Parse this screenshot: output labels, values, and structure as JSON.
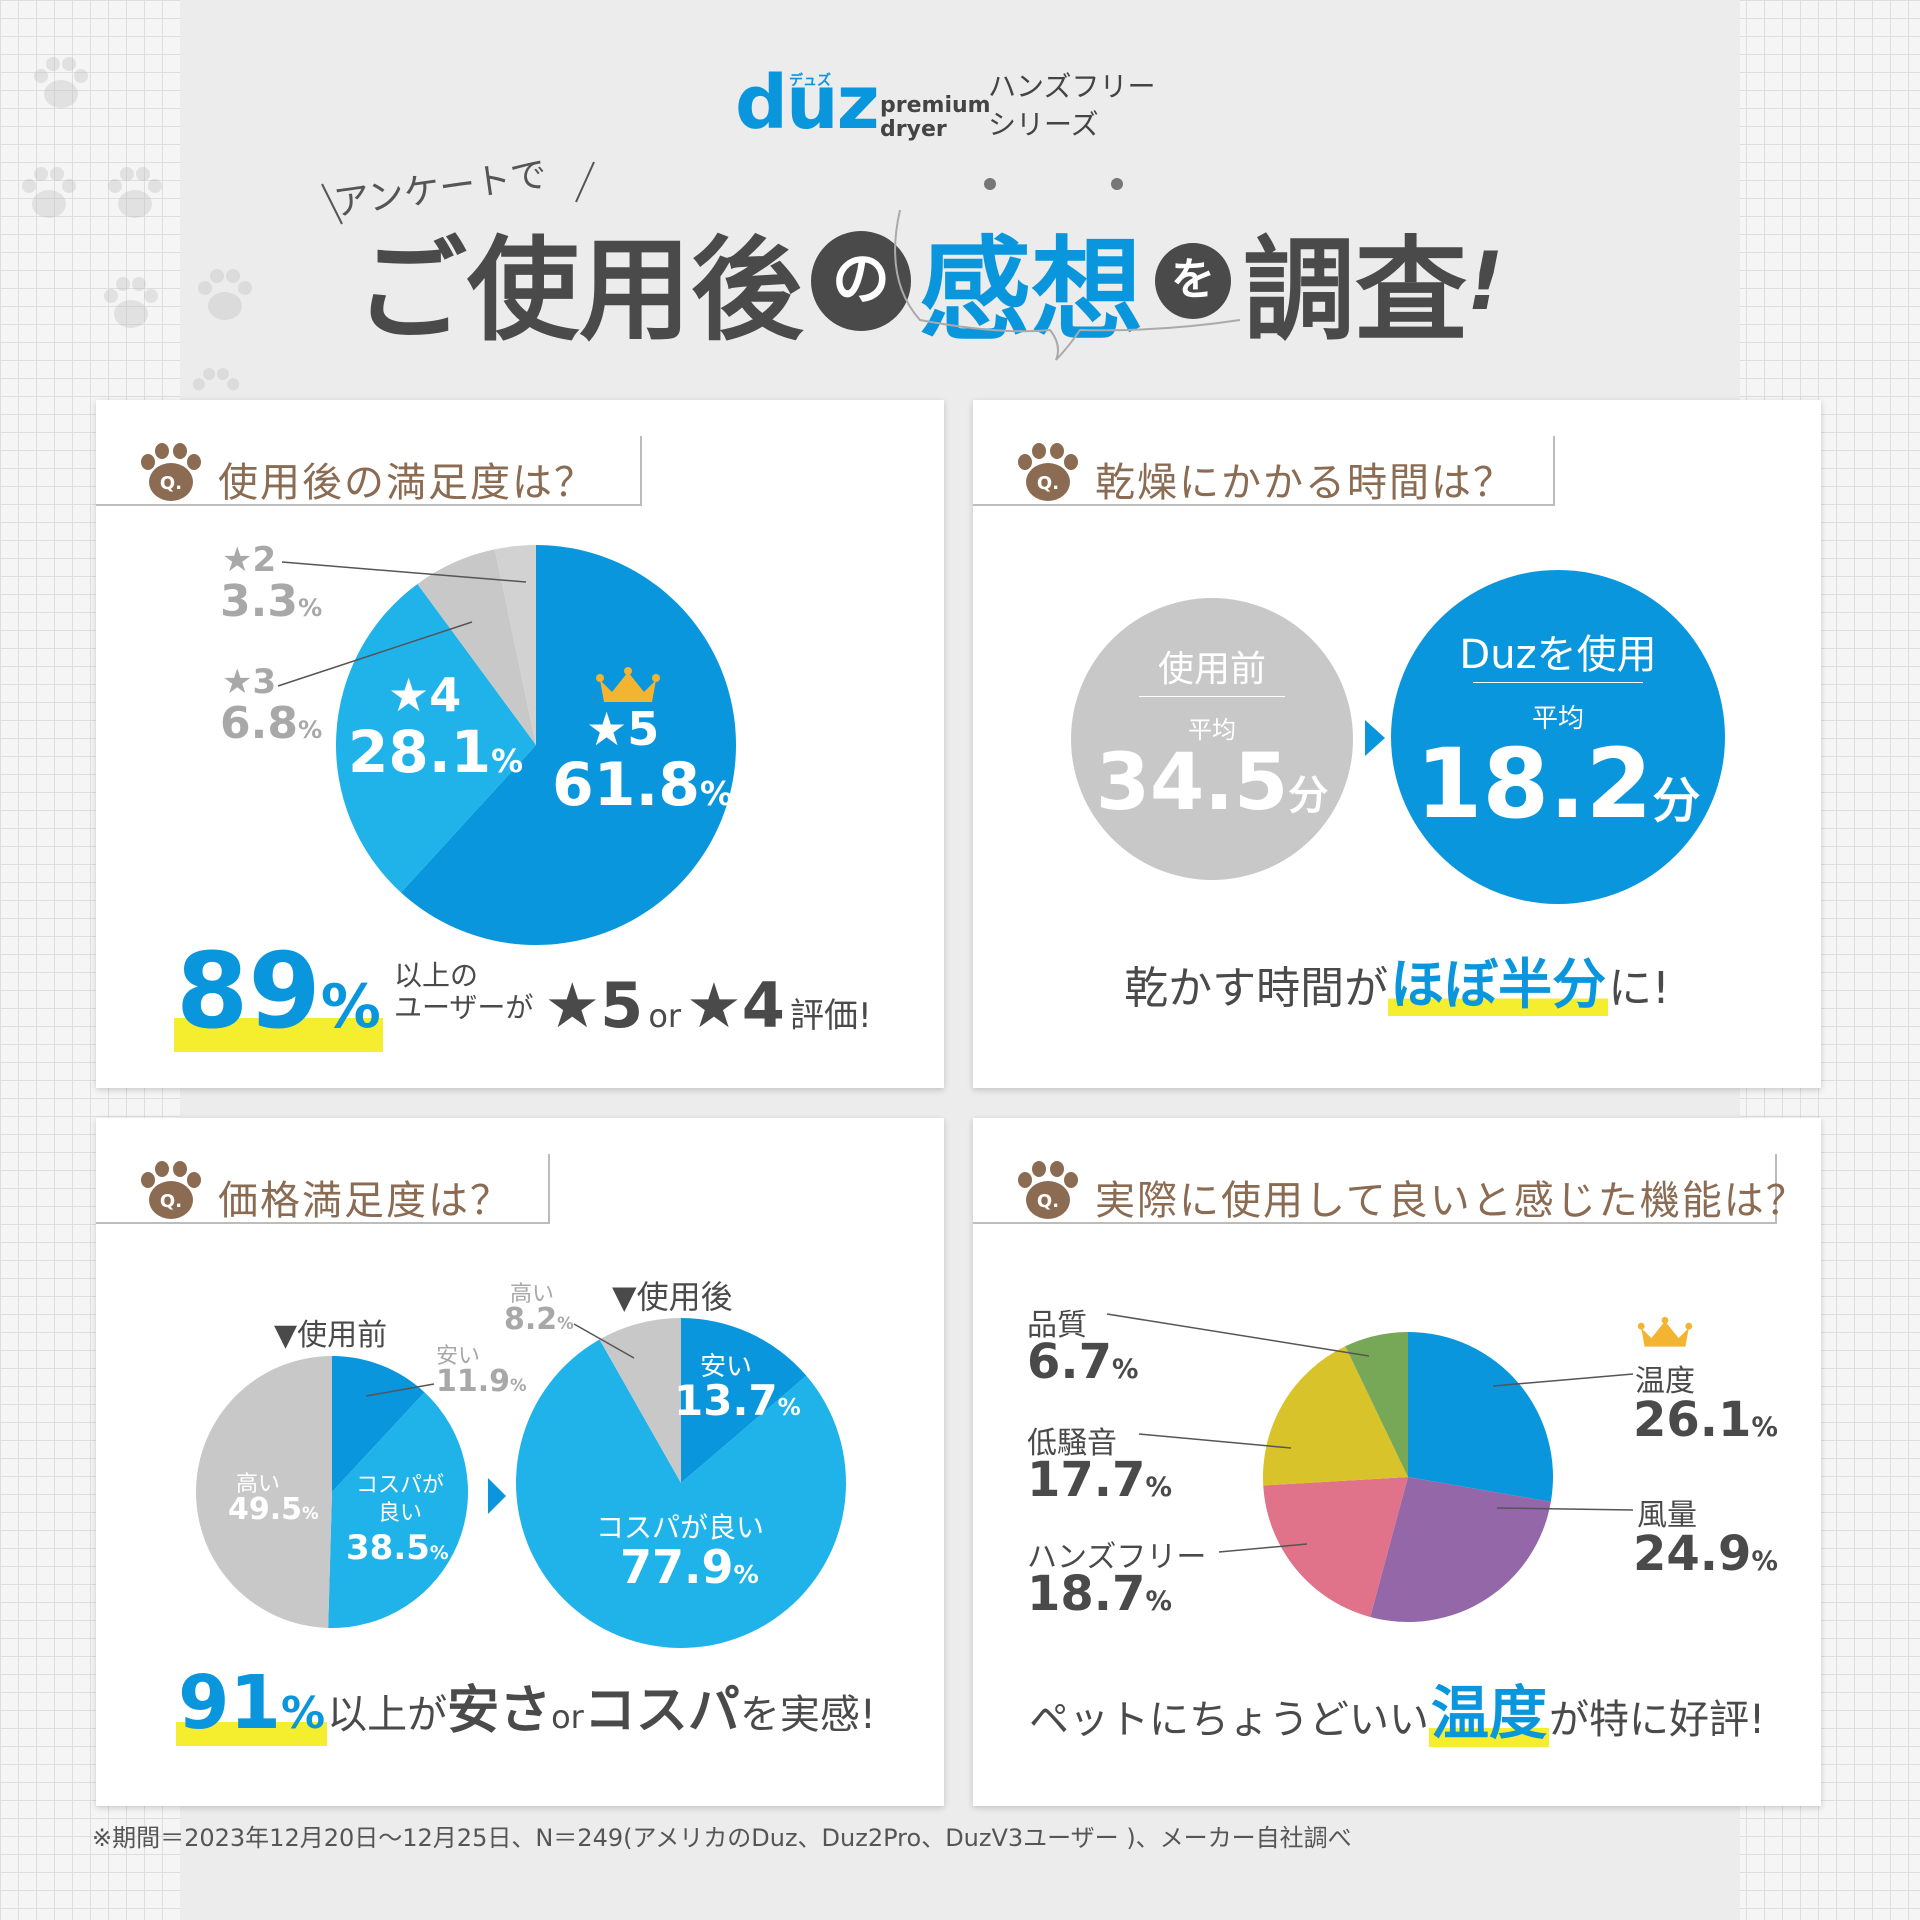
{
  "brand": {
    "logo": "duz",
    "logo_kana": "デュズ",
    "logo_sub_1": "premium",
    "logo_sub_2": "dryer",
    "series_1": "ハンズフリー",
    "series_2": "シリーズ"
  },
  "header": {
    "sub": "アンケートで",
    "title_1": "ご使用後",
    "title_no": "の",
    "title_2": "感想",
    "title_wo": "を",
    "title_3": "調査",
    "title_end": "!"
  },
  "colors": {
    "blue_dark": "#0a96dc",
    "blue_light": "#1fb3ea",
    "gray": "#c8c8c8",
    "purple": "#9467a8",
    "pink": "#e0728a",
    "yellow": "#d8c32b",
    "green": "#77a857",
    "q_brown": "#8b6b52",
    "highlight": "#f5ee2e"
  },
  "q1": {
    "question": "使用後の満足度は？",
    "summary_number": "89",
    "summary_pct": "%",
    "summary_text_1": "以上の",
    "summary_text_2": "ユーザーが",
    "summary_star5": "★5",
    "summary_or": "or",
    "summary_star4": "★4",
    "summary_end": "評価!"
  },
  "q2": {
    "question": "乾燥にかかる時間は？",
    "before_label": "使用前",
    "before_avg": "平均",
    "before_value": "34.5",
    "before_unit": "分",
    "after_label": "Duzを使用",
    "after_avg": "平均",
    "after_value": "18.2",
    "after_unit": "分",
    "summary_1": "乾かす時間が",
    "summary_hl": "ほぼ半分",
    "summary_2": "に!"
  },
  "q3": {
    "question": "価格満足度は？",
    "before_title": "▼使用前",
    "after_title": "▼使用後",
    "summary_number": "91",
    "summary_pct": "%",
    "summary_1": "以上が",
    "summary_b1": "安さ",
    "summary_or": "or",
    "summary_b2": "コスパ",
    "summary_2": "を実感!"
  },
  "q4": {
    "question": "実際に使用して良いと感じた機能は？",
    "summary_1": "ペットにちょうどいい",
    "summary_hl": "温度",
    "summary_2": "が特に好評!"
  },
  "chart_data": [
    {
      "type": "pie",
      "id": "satisfaction",
      "slices": [
        {
          "label": "★5",
          "value": 61.8
        },
        {
          "label": "★4",
          "value": 28.1
        },
        {
          "label": "★3",
          "value": 6.8
        },
        {
          "label": "★2",
          "value": 3.3
        }
      ]
    },
    {
      "type": "bar",
      "id": "drying_time",
      "categories": [
        "使用前",
        "Duzを使用"
      ],
      "values": [
        34.5,
        18.2
      ],
      "unit": "分"
    },
    {
      "type": "pie",
      "id": "price_before",
      "title": "▼使用前",
      "slices": [
        {
          "label": "安い",
          "value": 11.9
        },
        {
          "label": "コスパが良い",
          "value": 38.5
        },
        {
          "label": "高い",
          "value": 49.5
        }
      ]
    },
    {
      "type": "pie",
      "id": "price_after",
      "title": "▼使用後",
      "slices": [
        {
          "label": "安い",
          "value": 13.7
        },
        {
          "label": "コスパが良い",
          "value": 77.9
        },
        {
          "label": "高い",
          "value": 8.2
        }
      ]
    },
    {
      "type": "pie",
      "id": "features",
      "slices": [
        {
          "label": "温度",
          "value": 26.1
        },
        {
          "label": "風量",
          "value": 24.9
        },
        {
          "label": "ハンズフリー",
          "value": 18.7
        },
        {
          "label": "低騒音",
          "value": 17.7
        },
        {
          "label": "品質",
          "value": 6.7
        }
      ]
    }
  ],
  "footnote": "※期間＝2023年12月20日〜12月25日、N＝249(アメリカのDuz、Duz2Pro、DuzV3ユーザー )、メーカー自社調べ"
}
